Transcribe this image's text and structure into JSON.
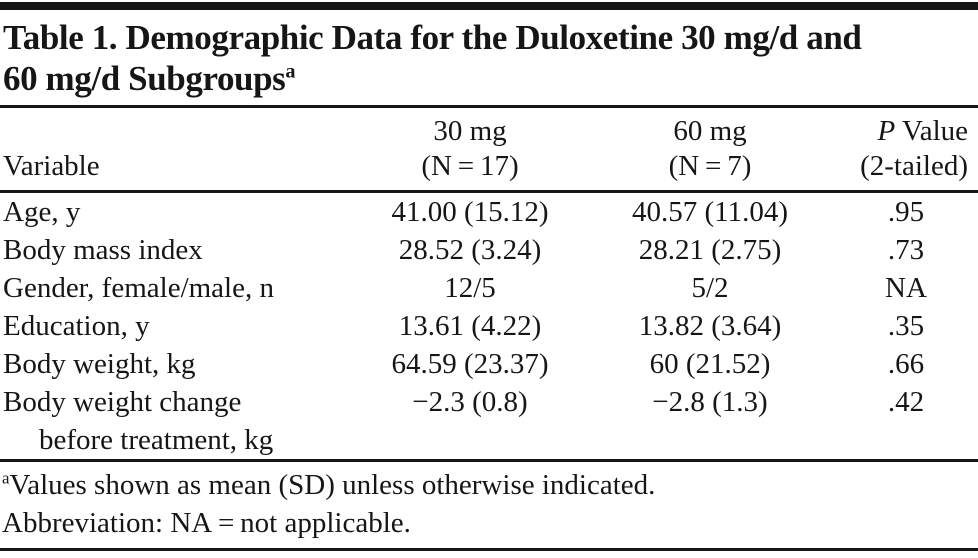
{
  "title": {
    "line1": "Table 1. Demographic Data for the Duloxetine 30 mg/d and",
    "line2": "60 mg/d Subgroups",
    "superscript": "a"
  },
  "header": {
    "variable": "Variable",
    "col30_line1": "30 mg",
    "col30_line2": "(N = 17)",
    "col60_line1": "60 mg",
    "col60_line2": "(N = 7)",
    "p_italic": "P",
    "p_rest": "Value",
    "p_line2": "(2-tailed)"
  },
  "rows": [
    {
      "variable": "Age, y",
      "mg30": "41.00 (15.12)",
      "mg60": "40.57 (11.04)",
      "p": ".95"
    },
    {
      "variable": "Body mass index",
      "mg30": "28.52 (3.24)",
      "mg60": "28.21 (2.75)",
      "p": ".73"
    },
    {
      "variable": "Gender, female/male, n",
      "mg30": "12/5",
      "mg60": "5/2",
      "p": "NA"
    },
    {
      "variable": "Education, y",
      "mg30": "13.61 (4.22)",
      "mg60": "13.82 (3.64)",
      "p": ".35"
    },
    {
      "variable": "Body weight, kg",
      "mg30": "64.59 (23.37)",
      "mg60": "60 (21.52)",
      "p": ".66"
    },
    {
      "variable": "Body weight change",
      "variable_line2": "before treatment, kg",
      "mg30": "−2.3 (0.8)",
      "mg60": "−2.8 (1.3)",
      "p": ".42"
    }
  ],
  "footnotes": {
    "line1_superscript": "a",
    "line1": "Values shown as mean (SD) unless otherwise indicated.",
    "line2": "Abbreviation: NA = not applicable."
  },
  "colors": {
    "text": "#161616",
    "rule": "#161616",
    "background": "#ffffff"
  }
}
